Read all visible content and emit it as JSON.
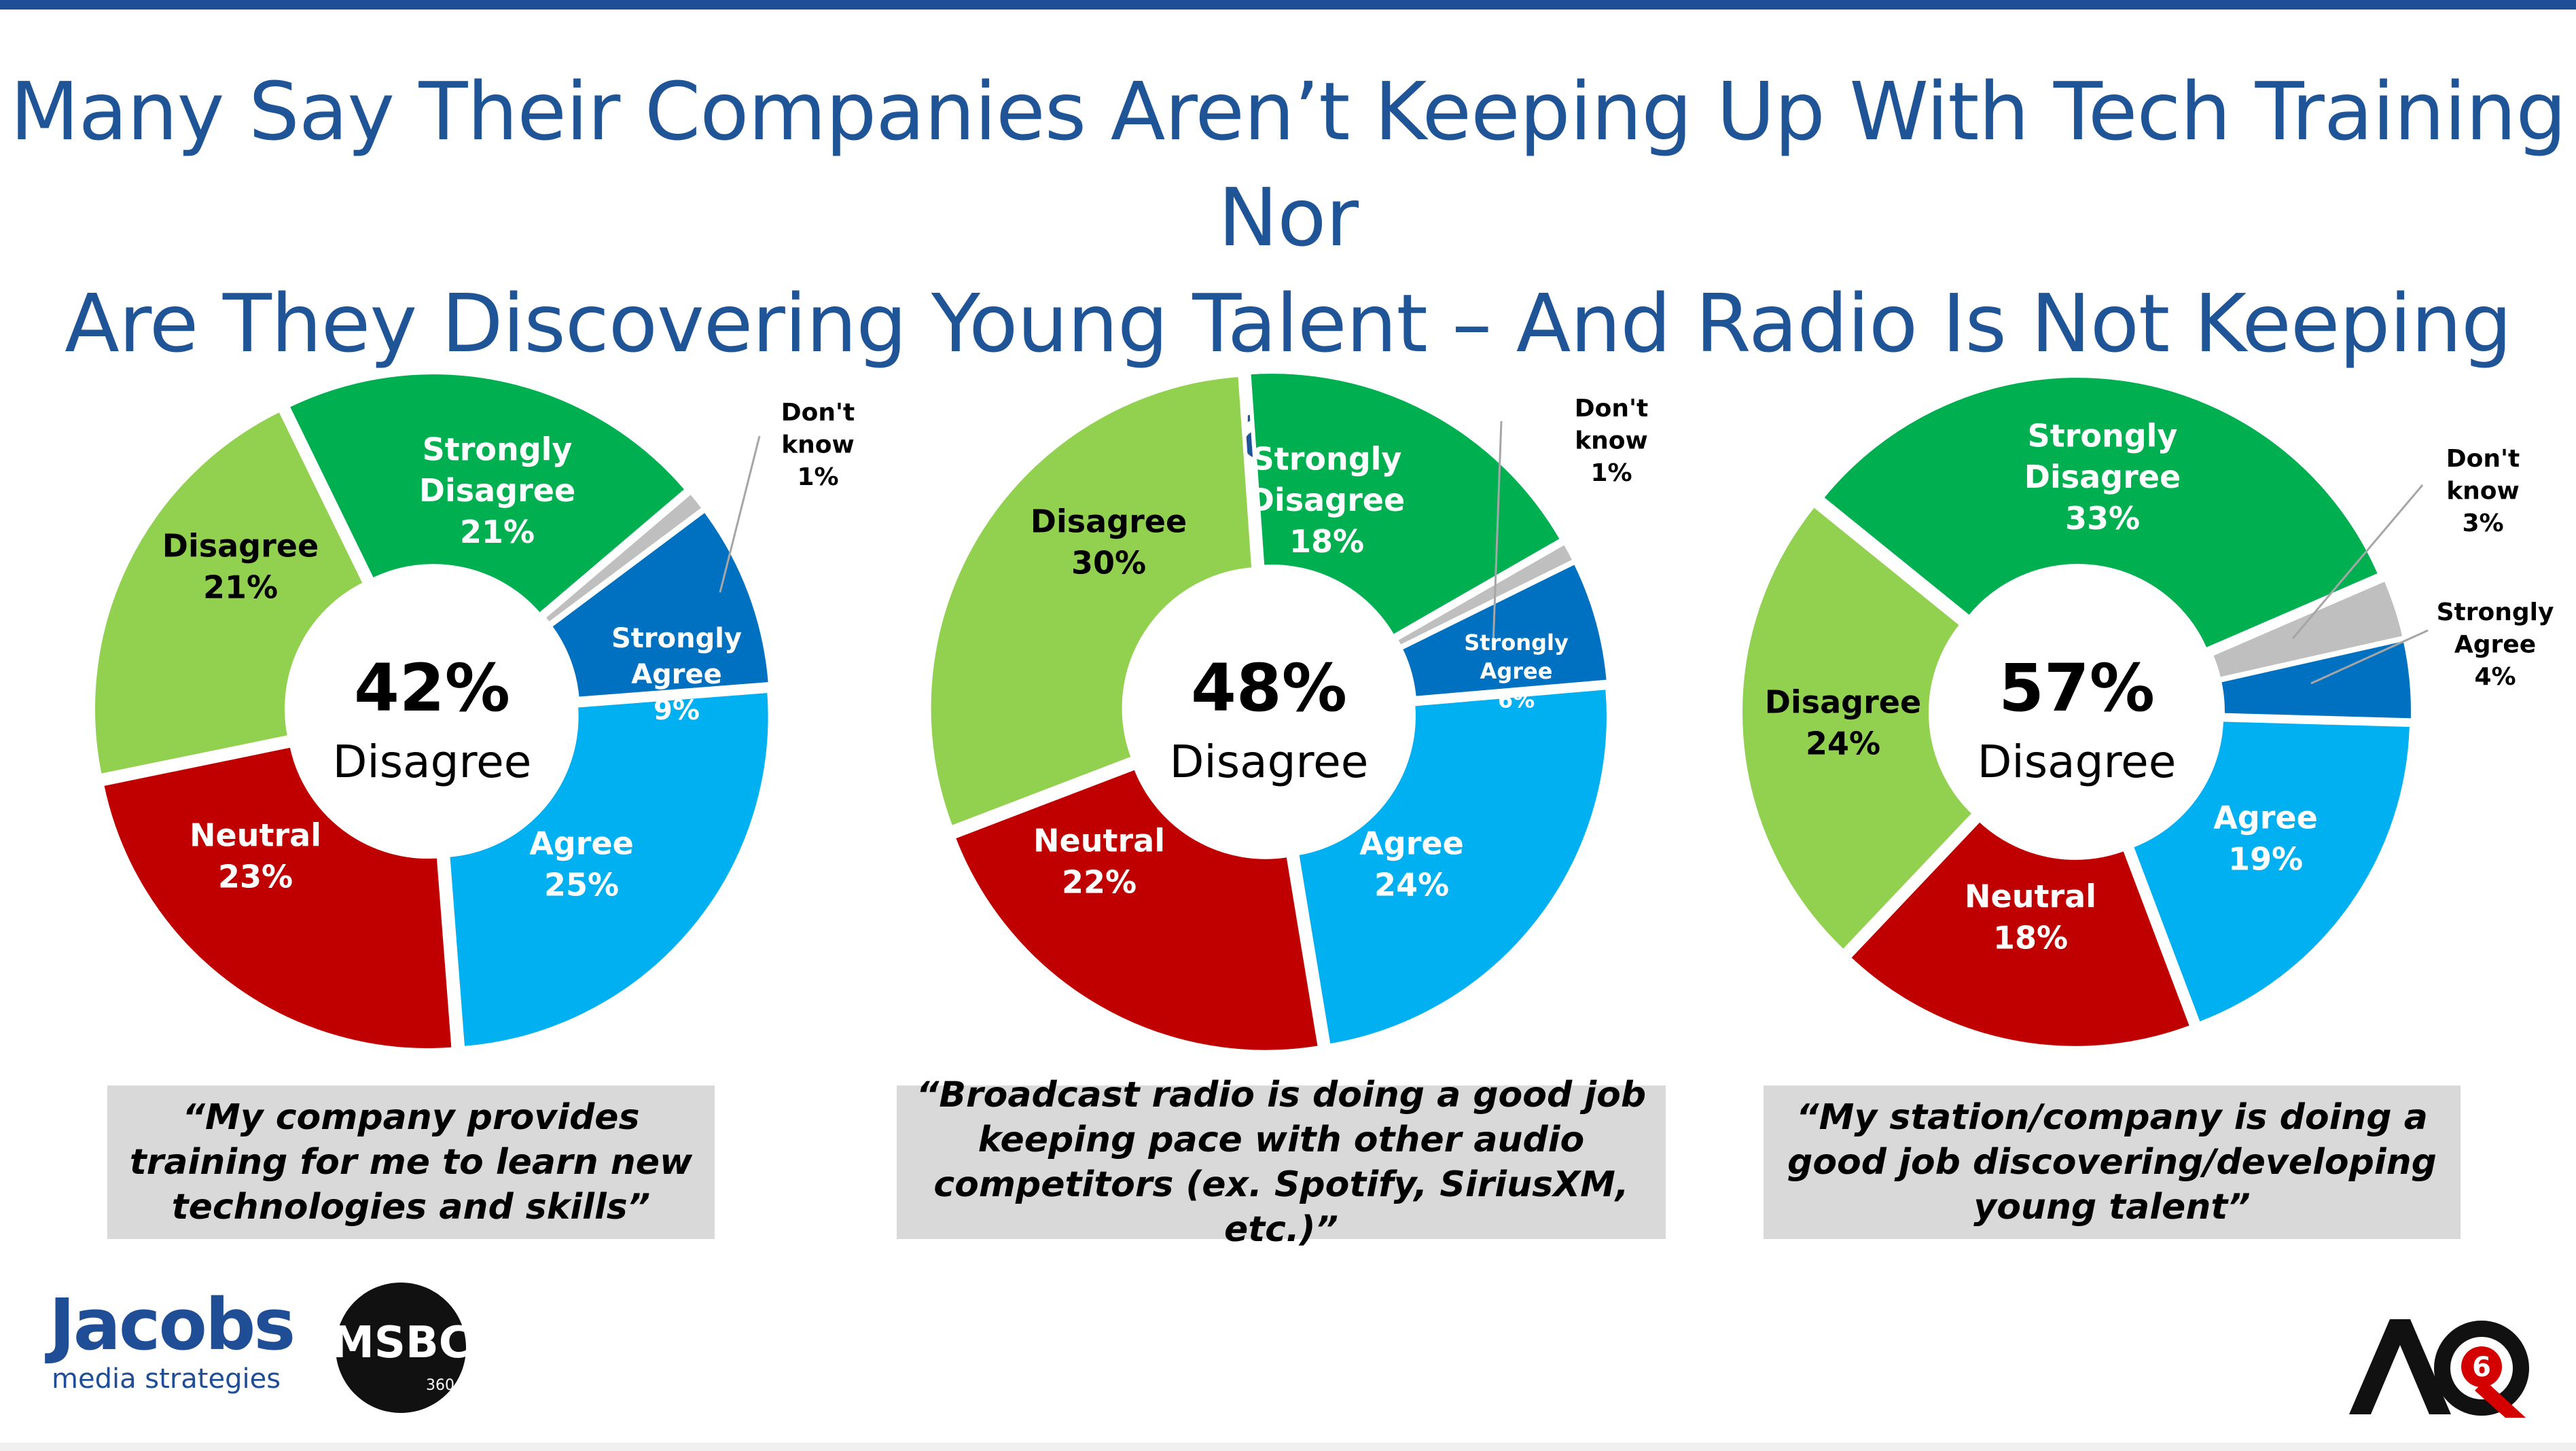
{
  "title_lines": [
    "Many Say Their Companies Aren’t Keeping Up With Tech Training Nor",
    "Are They Discovering Young Talent – And Radio Is Not Keeping Pace"
  ],
  "colors": {
    "title": "#1f5597",
    "strongly_disagree": "#00b050",
    "disagree": "#92d050",
    "neutral": "#c00000",
    "agree": "#00b0f0",
    "strongly_agree": "#0070c0",
    "dont_know": "#bfbfbf",
    "quote_box": "#d9d9d9"
  },
  "chart_data": [
    {
      "type": "pie",
      "subtype": "donut",
      "center": {
        "value": "42%",
        "label": "Disagree"
      },
      "caption": "“My company provides training for me to learn new technologies and skills”",
      "slices": [
        {
          "label": [
            "Strongly",
            "Disagree"
          ],
          "value": 21,
          "display": "21%",
          "color": "#00b050"
        },
        {
          "label": [
            "Don't",
            "know"
          ],
          "value": 1,
          "display": "1%",
          "color": "#bfbfbf"
        },
        {
          "label": [
            "Strongly",
            "Agree"
          ],
          "value": 9,
          "display": "9%",
          "color": "#0070c0"
        },
        {
          "label": [
            "Agree"
          ],
          "value": 25,
          "display": "25%",
          "color": "#00b0f0"
        },
        {
          "label": [
            "Neutral"
          ],
          "value": 23,
          "display": "23%",
          "color": "#c00000"
        },
        {
          "label": [
            "Disagree"
          ],
          "value": 21,
          "display": "21%",
          "color": "#92d050"
        }
      ]
    },
    {
      "type": "pie",
      "subtype": "donut",
      "center": {
        "value": "48%",
        "label": "Disagree"
      },
      "caption": "“Broadcast radio is doing a good job keeping pace with other audio competitors (ex. Spotify, SiriusXM, etc.)”",
      "slices": [
        {
          "label": [
            "Strongly",
            "Disagree"
          ],
          "value": 18,
          "display": "18%",
          "color": "#00b050"
        },
        {
          "label": [
            "Don't",
            "know"
          ],
          "value": 1,
          "display": "1%",
          "color": "#bfbfbf"
        },
        {
          "label": [
            "Strongly",
            "Agree"
          ],
          "value": 6,
          "display": "6%",
          "color": "#0070c0"
        },
        {
          "label": [
            "Agree"
          ],
          "value": 24,
          "display": "24%",
          "color": "#00b0f0"
        },
        {
          "label": [
            "Neutral"
          ],
          "value": 22,
          "display": "22%",
          "color": "#c00000"
        },
        {
          "label": [
            "Disagree"
          ],
          "value": 30,
          "display": "30%",
          "color": "#92d050"
        }
      ]
    },
    {
      "type": "pie",
      "subtype": "donut",
      "center": {
        "value": "57%",
        "label": "Disagree"
      },
      "caption": "“My station/company is doing a good job discovering/developing young talent”",
      "slices": [
        {
          "label": [
            "Strongly",
            "Disagree"
          ],
          "value": 33,
          "display": "33%",
          "color": "#00b050"
        },
        {
          "label": [
            "Don't",
            "know"
          ],
          "value": 3,
          "display": "3%",
          "color": "#bfbfbf"
        },
        {
          "label": [
            "Strongly",
            "Agree"
          ],
          "value": 4,
          "display": "4%",
          "color": "#0070c0"
        },
        {
          "label": [
            "Agree"
          ],
          "value": 19,
          "display": "19%",
          "color": "#00b0f0"
        },
        {
          "label": [
            "Neutral"
          ],
          "value": 18,
          "display": "18%",
          "color": "#c00000"
        },
        {
          "label": [
            "Disagree"
          ],
          "value": 24,
          "display": "24%",
          "color": "#92d050"
        }
      ]
    }
  ],
  "logos": {
    "jacobs": {
      "name": "Jacobs",
      "tagline": "media strategies"
    },
    "msbc": {
      "text": "MSBC",
      "sub": "360"
    },
    "aq": {
      "text": "AQ",
      "badge": "6"
    }
  }
}
